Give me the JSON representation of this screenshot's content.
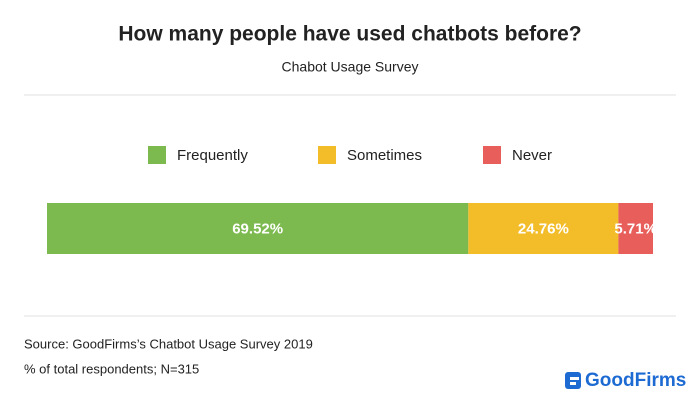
{
  "chart_data": {
    "type": "bar",
    "orientation": "horizontal",
    "stacked": true,
    "title": "How many people have used chatbots before?",
    "subtitle": "Chabot Usage Survey",
    "categories": [
      null
    ],
    "series": [
      {
        "name": "Frequently",
        "color": "#7cba4f",
        "values": [
          69.52
        ],
        "value_labels": [
          "69.52%"
        ]
      },
      {
        "name": "Sometimes",
        "color": "#f3bd2a",
        "values": [
          24.76
        ],
        "value_labels": [
          "24.76%"
        ]
      },
      {
        "name": "Never",
        "color": "#e85e5a",
        "values": [
          5.71
        ],
        "value_labels": [
          "5.71%"
        ]
      }
    ],
    "legend": "top",
    "source": "Source: GoodFirms’s Chatbot Usage Survey 2019",
    "note": "% of total respondents; N=315"
  },
  "logo": "GoodFirms"
}
